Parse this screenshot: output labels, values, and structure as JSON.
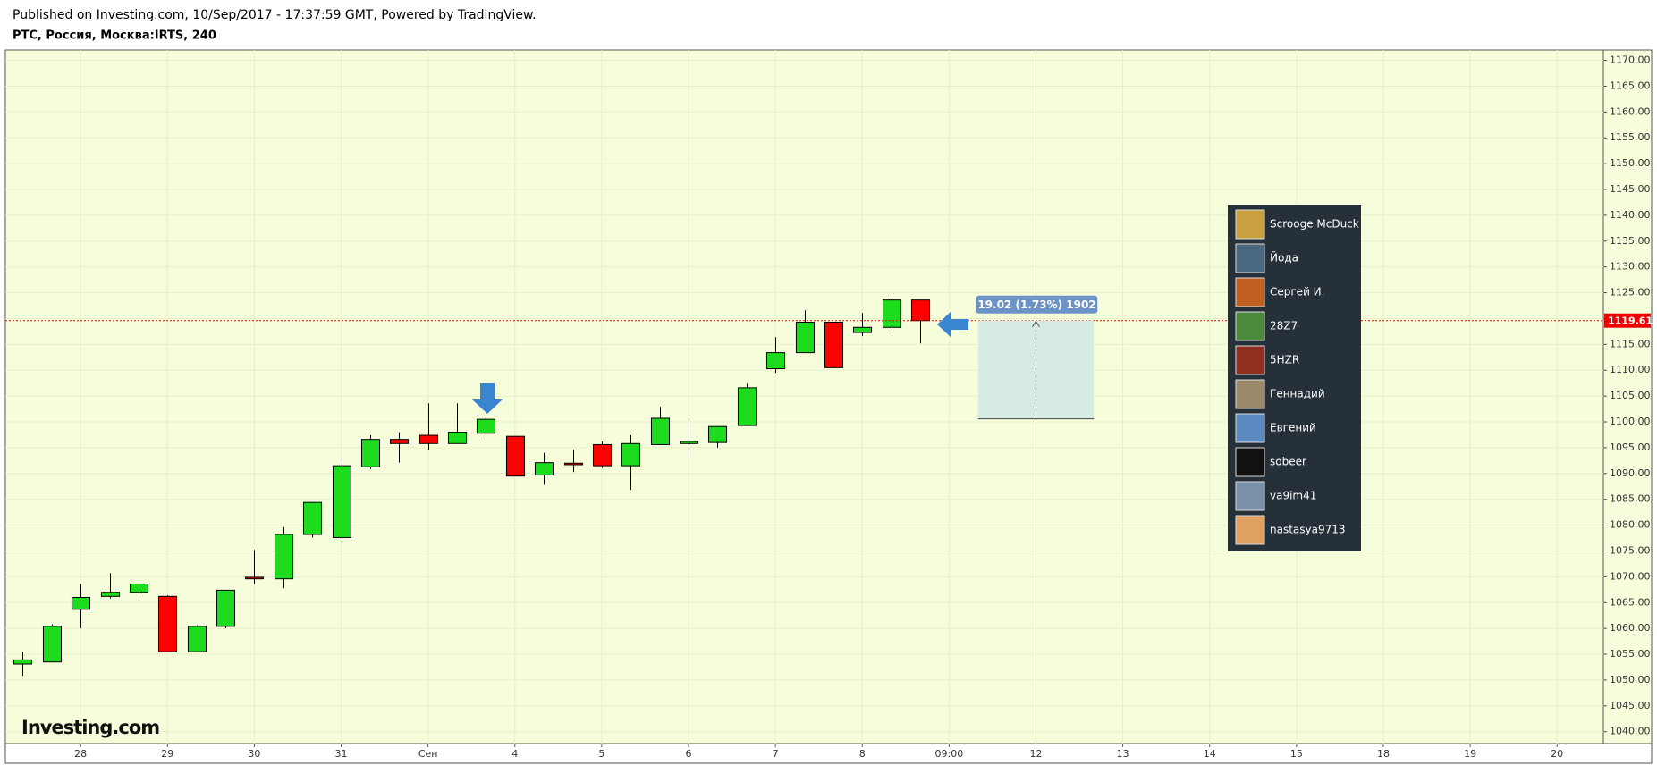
{
  "header": {
    "published": "Published on Investing.com, 10/Sep/2017 - 17:37:59 GMT, Powered by TradingView.",
    "symbol": "РТС, Россия, Москва:IRTS, 240"
  },
  "logo": "Investing.com",
  "chart_data": {
    "type": "candlestick",
    "x": [
      0,
      1,
      2,
      3,
      4,
      5,
      6,
      7,
      8,
      9,
      10,
      11,
      12,
      13,
      14,
      15,
      16,
      17,
      18,
      19,
      20,
      21,
      22,
      23,
      24,
      25,
      26,
      27,
      28,
      29,
      30,
      31
    ],
    "open": [
      1053.1,
      1053.5,
      1063.7,
      1066.2,
      1067.0,
      1066.2,
      1055.5,
      1060.4,
      1069.9,
      1069.6,
      1078.2,
      1077.6,
      1091.3,
      1096.6,
      1097.4,
      1095.8,
      1097.8,
      1097.2,
      1089.7,
      1092.0,
      1095.6,
      1091.5,
      1095.6,
      1095.8,
      1096.0,
      1099.3,
      1110.3,
      1113.4,
      1119.3,
      1117.3,
      1118.3,
      1123.6
    ],
    "high": [
      1055.5,
      1060.8,
      1068.6,
      1070.7,
      1068.6,
      1066.4,
      1060.6,
      1067.4,
      1075.2,
      1079.6,
      1084.4,
      1092.7,
      1097.4,
      1098.0,
      1103.6,
      1103.6,
      1101.7,
      1097.2,
      1094.0,
      1094.6,
      1096.2,
      1097.4,
      1102.9,
      1100.3,
      1099.1,
      1107.4,
      1116.4,
      1121.6,
      1119.3,
      1121.1,
      1124.2,
      1123.6
    ],
    "low": [
      1050.8,
      1053.5,
      1060.0,
      1065.8,
      1066.0,
      1055.5,
      1055.5,
      1060.0,
      1068.6,
      1067.8,
      1077.6,
      1077.2,
      1090.9,
      1092.1,
      1094.6,
      1095.8,
      1097.0,
      1089.5,
      1087.8,
      1090.3,
      1091.1,
      1086.8,
      1095.6,
      1093.1,
      1095.0,
      1099.3,
      1109.5,
      1113.4,
      1110.5,
      1116.6,
      1117.1,
      1115.2
    ],
    "close": [
      1053.9,
      1060.4,
      1066.0,
      1067.0,
      1068.6,
      1055.5,
      1060.4,
      1067.4,
      1069.6,
      1078.2,
      1084.4,
      1091.5,
      1096.6,
      1095.8,
      1095.8,
      1098.0,
      1100.5,
      1089.5,
      1092.1,
      1091.7,
      1091.5,
      1095.8,
      1100.7,
      1096.2,
      1099.1,
      1106.6,
      1113.4,
      1119.3,
      1110.5,
      1118.3,
      1123.6,
      1119.61
    ],
    "up_color": "#1ddc1d",
    "down_color": "#ff0000",
    "background": "#f6fdda",
    "xlim": [
      -0.6,
      54.6
    ],
    "ylim": [
      1037.7,
      1172.0
    ],
    "xticks": [
      {
        "value": 2,
        "label": "28"
      },
      {
        "value": 5,
        "label": "29"
      },
      {
        "value": 8,
        "label": "30"
      },
      {
        "value": 11,
        "label": "31"
      },
      {
        "value": 14,
        "label": "Сен"
      },
      {
        "value": 17,
        "label": "4"
      },
      {
        "value": 20,
        "label": "5"
      },
      {
        "value": 23,
        "label": "6"
      },
      {
        "value": 26,
        "label": "7"
      },
      {
        "value": 29,
        "label": "8"
      },
      {
        "value": 32,
        "label": "09:00"
      },
      {
        "value": 35,
        "label": "12"
      },
      {
        "value": 38,
        "label": "13"
      },
      {
        "value": 41,
        "label": "14"
      },
      {
        "value": 44,
        "label": "15"
      },
      {
        "value": 47,
        "label": "18"
      },
      {
        "value": 50,
        "label": "19"
      },
      {
        "value": 53,
        "label": "20"
      }
    ],
    "yticks": [
      {
        "value": 1040,
        "label": "1040.00"
      },
      {
        "value": 1045,
        "label": "1045.00"
      },
      {
        "value": 1050,
        "label": "1050.00"
      },
      {
        "value": 1055,
        "label": "1055.00"
      },
      {
        "value": 1060,
        "label": "1060.00"
      },
      {
        "value": 1065,
        "label": "1065.00"
      },
      {
        "value": 1070,
        "label": "1070.00"
      },
      {
        "value": 1075,
        "label": "1075.00"
      },
      {
        "value": 1080,
        "label": "1080.00"
      },
      {
        "value": 1085,
        "label": "1085.00"
      },
      {
        "value": 1090,
        "label": "1090.00"
      },
      {
        "value": 1095,
        "label": "1095.00"
      },
      {
        "value": 1100,
        "label": "1100.00"
      },
      {
        "value": 1105,
        "label": "1105.00"
      },
      {
        "value": 1110,
        "label": "1110.00"
      },
      {
        "value": 1115,
        "label": "1115.00"
      },
      {
        "value": 1120,
        "label": "1120.00"
      },
      {
        "value": 1125,
        "label": "1125.00"
      },
      {
        "value": 1130,
        "label": "1130.00"
      },
      {
        "value": 1135,
        "label": "1135.00"
      },
      {
        "value": 1140,
        "label": "1140.00"
      },
      {
        "value": 1145,
        "label": "1145.00"
      },
      {
        "value": 1150,
        "label": "1150.00"
      },
      {
        "value": 1155,
        "label": "1155.00"
      },
      {
        "value": 1160,
        "label": "1160.00"
      },
      {
        "value": 1165,
        "label": "1165.00"
      },
      {
        "value": 1170,
        "label": "1170.00"
      }
    ],
    "grid": true,
    "last_price": 1119.61,
    "measure": {
      "label": "19.02 (1.73%) 1902",
      "x_from": 33,
      "x_to": 37,
      "y_from": 1100.59,
      "y_to": 1119.61
    }
  },
  "users": [
    "Scrooge McDuck",
    "Йода",
    "Сергей И.",
    "28Z7",
    "5HZR",
    "Геннадий",
    "Евгений",
    "sobeer",
    "va9im41",
    "nastasya9713"
  ]
}
